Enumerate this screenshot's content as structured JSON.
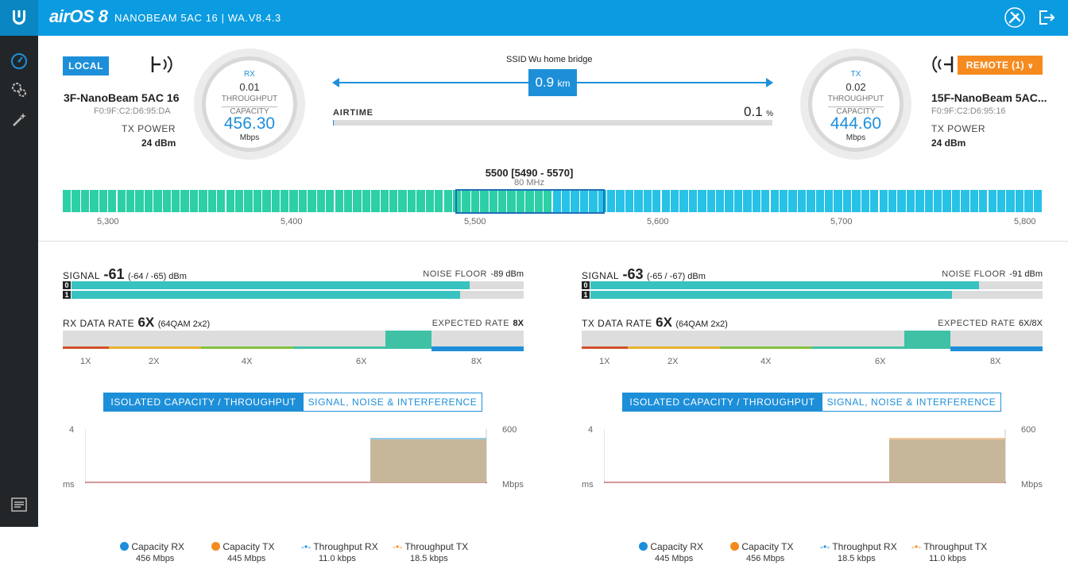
{
  "app": {
    "brand": "airOS 8",
    "device_title": "NANOBEAM 5AC 16 | WA.V8.4.3"
  },
  "local": {
    "badge": "LOCAL",
    "name": "3F-NanoBeam 5AC 16",
    "mac": "F0:9F:C2:D6:95:DA",
    "tx_power_label": "TX POWER",
    "tx_power_value": "24 dBm",
    "gauge": {
      "label": "RX",
      "throughput": "0.01",
      "throughput_label": "THROUGHPUT",
      "capacity_label": "CAPACITY",
      "capacity": "456.30",
      "unit": "Mbps"
    }
  },
  "remote": {
    "badge": "REMOTE (1)",
    "name": "15F-NanoBeam 5AC...",
    "mac": "F0:9F:C2:D6:95:16",
    "tx_power_label": "TX POWER",
    "tx_power_value": "24 dBm",
    "gauge": {
      "label": "TX",
      "throughput": "0.02",
      "throughput_label": "THROUGHPUT",
      "capacity_label": "CAPACITY",
      "capacity": "444.60",
      "unit": "Mbps"
    }
  },
  "link": {
    "ssid_label": "SSID",
    "ssid_value": "Wu home bridge",
    "distance": "0.9",
    "distance_unit": "km",
    "airtime_label": "AIRTIME",
    "airtime_value": "0.1",
    "airtime_unit": "%",
    "airtime_fraction": 0.001
  },
  "spectrum": {
    "center": "5500 [5490 - 5570]",
    "width": "80 MHz",
    "ticks": [
      "5,300",
      "5,400",
      "5,500",
      "5,600",
      "5,700",
      "5,800"
    ],
    "colors": {
      "green": "#2ccfa6",
      "blue": "#27c2e6",
      "selected_border": "#1d6fb8"
    }
  },
  "panels": [
    {
      "signal_label": "SIGNAL",
      "signal_value": "-61",
      "signal_detail": "(-64 / -65) dBm",
      "noise_label": "NOISE FLOOR",
      "noise_value": "-89 dBm",
      "chains": [
        {
          "id": "0",
          "level": 0.88
        },
        {
          "id": "1",
          "level": 0.86
        }
      ],
      "rate_label": "RX DATA RATE",
      "rate_value": "6X",
      "rate_detail": "(64QAM 2x2)",
      "expected_label": "EXPECTED RATE",
      "expected_value": "8X",
      "rate_ticks": [
        "1X",
        "2X",
        "4X",
        "6X",
        "8X"
      ],
      "tab_active": "ISOLATED CAPACITY / THROUGHPUT",
      "tab_inactive": "SIGNAL, NOISE & INTERFERENCE",
      "chart": {
        "y_left_top": "4",
        "y_left_bottom": "ms",
        "y_right_top": "600",
        "y_right_bottom": "Mbps"
      },
      "legend": [
        {
          "name": "Capacity RX",
          "value": "456 Mbps",
          "color": "#1d8fd9"
        },
        {
          "name": "Capacity TX",
          "value": "445 Mbps",
          "color": "#f58b1f"
        },
        {
          "name": "Throughput RX",
          "value": "11.0 kbps",
          "color": "#1d8fd9"
        },
        {
          "name": "Throughput TX",
          "value": "18.5 kbps",
          "color": "#f58b1f"
        }
      ]
    },
    {
      "signal_label": "SIGNAL",
      "signal_value": "-63",
      "signal_detail": "(-65 / -67) dBm",
      "noise_label": "NOISE FLOOR",
      "noise_value": "-91 dBm",
      "chains": [
        {
          "id": "0",
          "level": 0.86
        },
        {
          "id": "1",
          "level": 0.8
        }
      ],
      "rate_label": "TX DATA RATE",
      "rate_value": "6X",
      "rate_detail": "(64QAM 2x2)",
      "expected_label": "EXPECTED RATE",
      "expected_value": "6X/8X",
      "rate_ticks": [
        "1X",
        "2X",
        "4X",
        "6X",
        "8X"
      ],
      "tab_active": "ISOLATED CAPACITY / THROUGHPUT",
      "tab_inactive": "SIGNAL, NOISE & INTERFERENCE",
      "chart": {
        "y_left_top": "4",
        "y_left_bottom": "ms",
        "y_right_top": "600",
        "y_right_bottom": "Mbps"
      },
      "legend": [
        {
          "name": "Capacity RX",
          "value": "445 Mbps",
          "color": "#1d8fd9"
        },
        {
          "name": "Capacity TX",
          "value": "456 Mbps",
          "color": "#f58b1f"
        },
        {
          "name": "Throughput RX",
          "value": "18.5 kbps",
          "color": "#1d8fd9"
        },
        {
          "name": "Throughput TX",
          "value": "11.0 kbps",
          "color": "#f58b1f"
        }
      ]
    }
  ]
}
